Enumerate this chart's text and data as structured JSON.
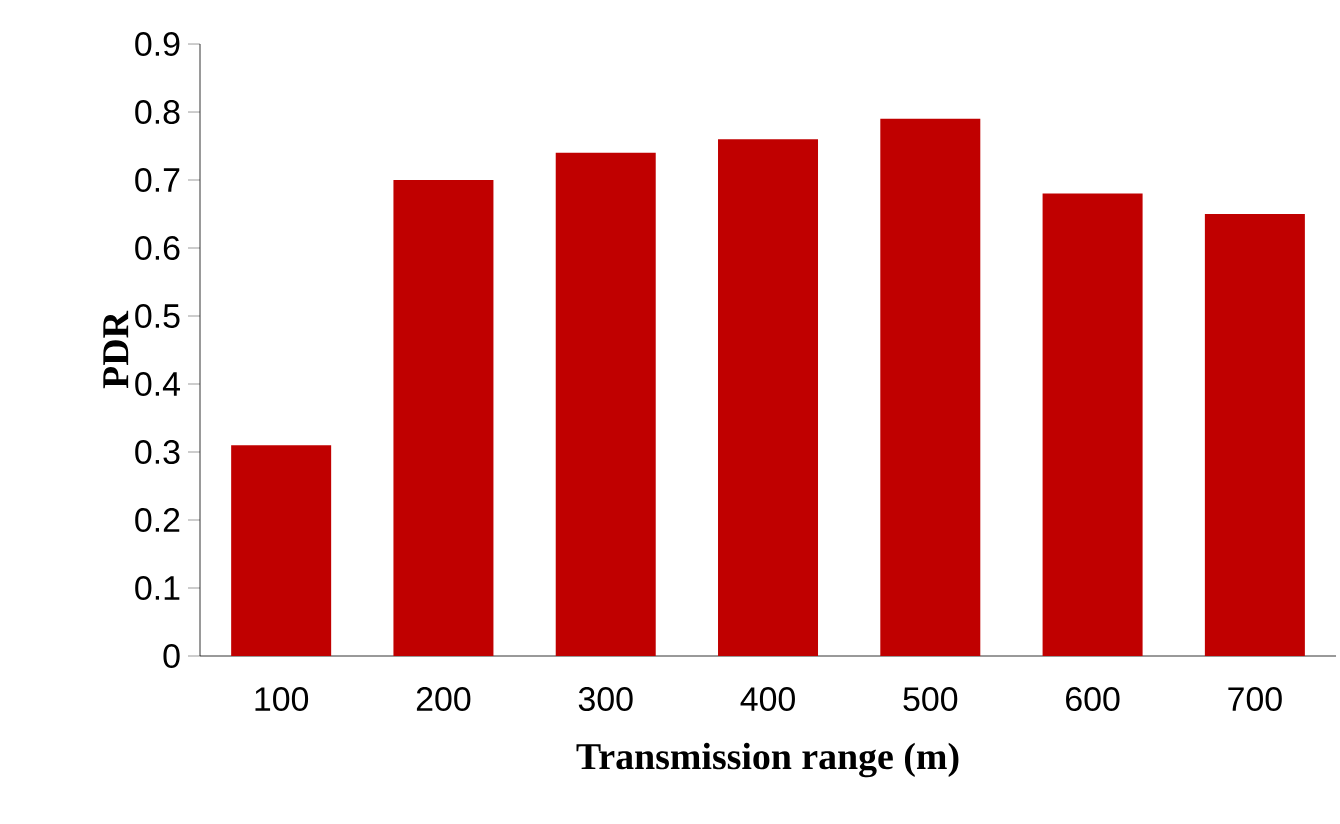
{
  "chart_data": {
    "type": "bar",
    "xlabel": "Transmission range (m)",
    "ylabel": "PDR",
    "categories": [
      "100",
      "200",
      "300",
      "400",
      "500",
      "600",
      "700"
    ],
    "values": [
      0.31,
      0.7,
      0.74,
      0.76,
      0.79,
      0.68,
      0.65
    ],
    "color": "#c00000",
    "ylim": [
      0,
      0.9
    ],
    "yticks": [
      0,
      0.1,
      0.2,
      0.3,
      0.4,
      0.5,
      0.6,
      0.7,
      0.8,
      0.9
    ]
  }
}
